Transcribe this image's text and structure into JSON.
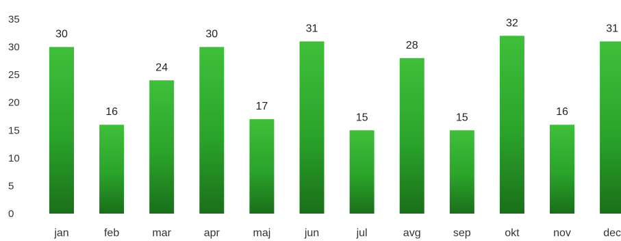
{
  "chart_data": {
    "type": "bar",
    "title": "",
    "xlabel": "",
    "ylabel": "",
    "categories": [
      "jan",
      "feb",
      "mar",
      "apr",
      "maj",
      "jun",
      "jul",
      "avg",
      "sep",
      "okt",
      "nov",
      "dec"
    ],
    "values": [
      30,
      16,
      24,
      30,
      17,
      31,
      15,
      28,
      15,
      32,
      16,
      31
    ],
    "data_labels": [
      "30",
      "16",
      "24",
      "30",
      "17",
      "31",
      "15",
      "28",
      "15",
      "32",
      "16",
      "31"
    ],
    "ylim": [
      0,
      35
    ],
    "yticks": [
      "0",
      "5",
      "10",
      "15",
      "20",
      "25",
      "30",
      "35"
    ],
    "grid": false,
    "legend": "none",
    "colors": {
      "bar_light": "#3fbf3a",
      "bar_mid": "#2aa32a",
      "bar_dark": "#1a6f1a"
    }
  }
}
